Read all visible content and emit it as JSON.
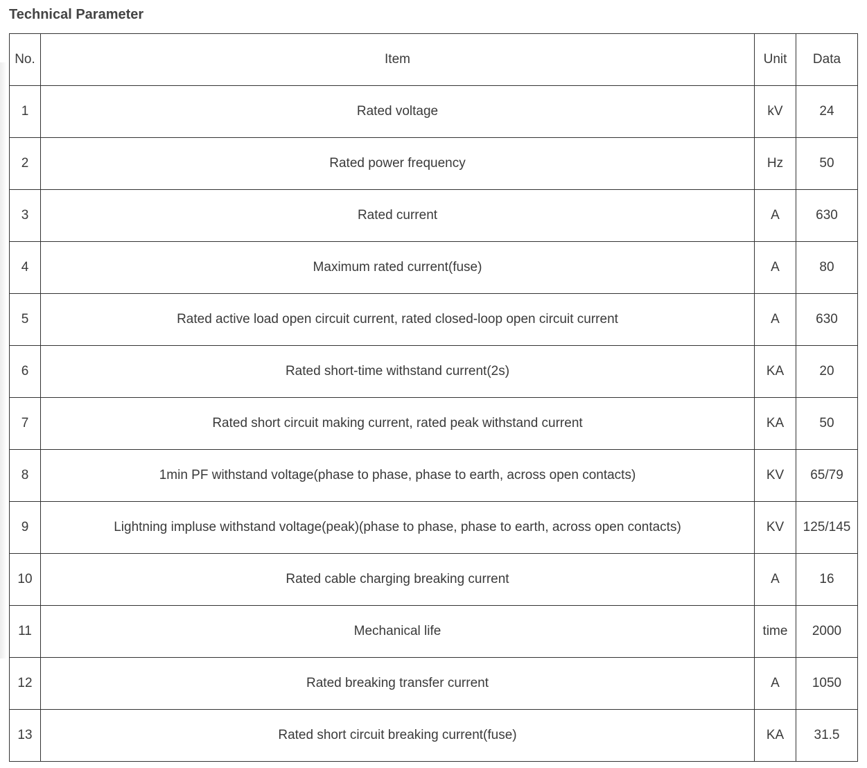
{
  "title": "Technical Parameter",
  "table": {
    "headers": [
      "No.",
      "Item",
      "Unit",
      "Data"
    ],
    "rows": [
      [
        "1",
        "Rated voltage",
        "kV",
        "24"
      ],
      [
        "2",
        "Rated power frequency",
        "Hz",
        "50"
      ],
      [
        "3",
        "Rated current",
        "A",
        "630"
      ],
      [
        "4",
        "Maximum rated current(fuse)",
        "A",
        "80"
      ],
      [
        "5",
        "Rated active load open circuit current, rated closed-loop open circuit current",
        "A",
        "630"
      ],
      [
        "6",
        "Rated short-time withstand current(2s)",
        "KA",
        "20"
      ],
      [
        "7",
        "Rated short circuit making current, rated peak withstand current",
        "KA",
        "50"
      ],
      [
        "8",
        "1min PF withstand voltage(phase to phase, phase to earth, across open contacts)",
        "KV",
        "65/79"
      ],
      [
        "9",
        "Lightning impluse withstand voltage(peak)(phase to phase, phase to earth, across open contacts)",
        "KV",
        "125/145"
      ],
      [
        "10",
        "Rated cable charging breaking current",
        "A",
        "16"
      ],
      [
        "11",
        "Mechanical life",
        "time",
        "2000"
      ],
      [
        "12",
        "Rated breaking transfer current",
        "A",
        "1050"
      ],
      [
        "13",
        "Rated short circuit breaking current(fuse)",
        "KA",
        "31.5"
      ]
    ]
  }
}
